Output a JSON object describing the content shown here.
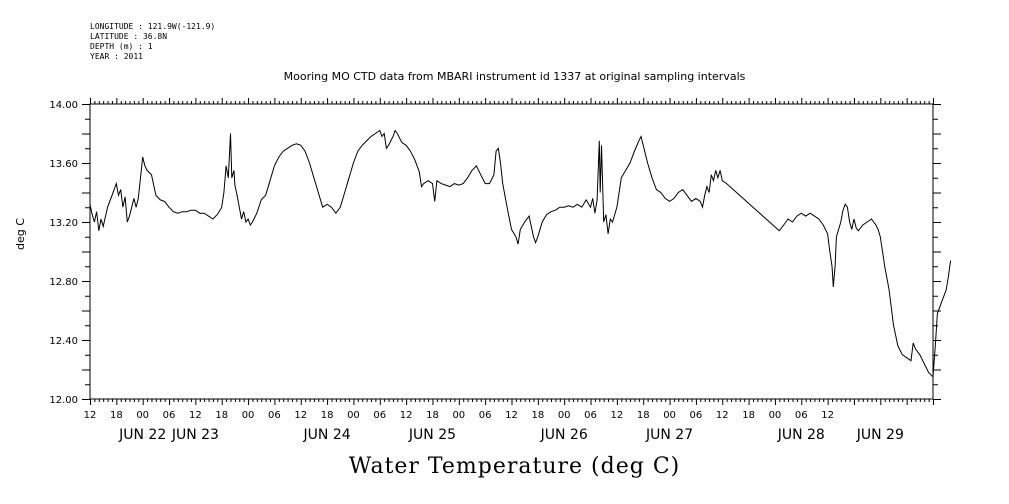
{
  "header": {
    "longitude": "LONGITUDE : 121.9W(-121.9)",
    "latitude": "LATITUDE : 36.8N",
    "depth": "DEPTH (m) : 1",
    "year": "YEAR : 2011"
  },
  "chart_data": {
    "type": "line",
    "title": "Mooring MO CTD data from MBARI instrument id 1337 at original sampling intervals",
    "ylabel": "deg C",
    "xlabel": "Water Temperature (deg C)",
    "ylim": [
      12.0,
      14.0
    ],
    "yticks": [
      "14.00",
      "13.60",
      "13.20",
      "12.80",
      "12.40",
      "12.00"
    ],
    "xlim_hours": [
      -12,
      180
    ],
    "hour_tick_labels": [
      "12",
      "18",
      "00",
      "06",
      "12",
      "18",
      "00",
      "06",
      "12",
      "18",
      "00",
      "06",
      "12",
      "18",
      "00",
      "06",
      "12",
      "18",
      "00",
      "06",
      "12",
      "18",
      "00",
      "06",
      "12",
      "18",
      "00",
      "06",
      "12"
    ],
    "date_labels": [
      {
        "text": "JUN 22",
        "hour": 0
      },
      {
        "text": "JUN 23",
        "hour": 12
      },
      {
        "text": "JUN 24",
        "hour": 42
      },
      {
        "text": "JUN 25",
        "hour": 66
      },
      {
        "text": "JUN 26",
        "hour": 96
      },
      {
        "text": "JUN 27",
        "hour": 120
      },
      {
        "text": "JUN 28",
        "hour": 150
      },
      {
        "text": "JUN 29",
        "hour": 168
      }
    ],
    "series": [
      {
        "points": [
          [
            -12,
            13.32
          ],
          [
            -11.5,
            13.25
          ],
          [
            -11,
            13.2
          ],
          [
            -10.5,
            13.27
          ],
          [
            -10,
            13.14
          ],
          [
            -9.5,
            13.22
          ],
          [
            -9,
            13.17
          ],
          [
            -8,
            13.3
          ],
          [
            -7,
            13.38
          ],
          [
            -6,
            13.46
          ],
          [
            -5.5,
            13.38
          ],
          [
            -5,
            13.42
          ],
          [
            -4.5,
            13.3
          ],
          [
            -4,
            13.37
          ],
          [
            -3.5,
            13.2
          ],
          [
            -3,
            13.24
          ],
          [
            -2,
            13.36
          ],
          [
            -1.5,
            13.3
          ],
          [
            -1,
            13.36
          ],
          [
            -0.5,
            13.5
          ],
          [
            0,
            13.64
          ],
          [
            0.5,
            13.58
          ],
          [
            1,
            13.55
          ],
          [
            2,
            13.52
          ],
          [
            2.5,
            13.45
          ],
          [
            3,
            13.38
          ],
          [
            4,
            13.35
          ],
          [
            5,
            13.34
          ],
          [
            6,
            13.3
          ],
          [
            7,
            13.27
          ],
          [
            8,
            13.26
          ],
          [
            9,
            13.27
          ],
          [
            10,
            13.27
          ],
          [
            11,
            13.28
          ],
          [
            12,
            13.28
          ],
          [
            13,
            13.26
          ],
          [
            14,
            13.26
          ],
          [
            15,
            13.24
          ],
          [
            16,
            13.22
          ],
          [
            17,
            13.25
          ],
          [
            18,
            13.3
          ],
          [
            18.5,
            13.4
          ],
          [
            19,
            13.58
          ],
          [
            19.5,
            13.5
          ],
          [
            20,
            13.8
          ],
          [
            20.3,
            13.5
          ],
          [
            20.8,
            13.55
          ],
          [
            21,
            13.45
          ],
          [
            21.5,
            13.38
          ],
          [
            22,
            13.3
          ],
          [
            22.5,
            13.22
          ],
          [
            23,
            13.27
          ],
          [
            23.5,
            13.2
          ],
          [
            24,
            13.22
          ],
          [
            24.5,
            13.18
          ],
          [
            25,
            13.2
          ],
          [
            26,
            13.26
          ],
          [
            27,
            13.35
          ],
          [
            28,
            13.38
          ],
          [
            29,
            13.48
          ],
          [
            30,
            13.58
          ],
          [
            31,
            13.64
          ],
          [
            32,
            13.68
          ],
          [
            33,
            13.7
          ],
          [
            34,
            13.72
          ],
          [
            35,
            13.73
          ],
          [
            36,
            13.72
          ],
          [
            37,
            13.68
          ],
          [
            38,
            13.6
          ],
          [
            39,
            13.5
          ],
          [
            40,
            13.4
          ],
          [
            41,
            13.3
          ],
          [
            42,
            13.32
          ],
          [
            43,
            13.3
          ],
          [
            44,
            13.26
          ],
          [
            45,
            13.3
          ],
          [
            46,
            13.4
          ],
          [
            47,
            13.5
          ],
          [
            48,
            13.6
          ],
          [
            49,
            13.68
          ],
          [
            50,
            13.72
          ],
          [
            51,
            13.75
          ],
          [
            52,
            13.78
          ],
          [
            53,
            13.8
          ],
          [
            54,
            13.82
          ],
          [
            54.5,
            13.78
          ],
          [
            55,
            13.8
          ],
          [
            55.5,
            13.7
          ],
          [
            56,
            13.72
          ],
          [
            56.5,
            13.75
          ],
          [
            57,
            13.78
          ],
          [
            57.5,
            13.82
          ],
          [
            58,
            13.8
          ],
          [
            59,
            13.74
          ],
          [
            60,
            13.72
          ],
          [
            61,
            13.68
          ],
          [
            62,
            13.62
          ],
          [
            63,
            13.54
          ],
          [
            63.5,
            13.44
          ],
          [
            64,
            13.46
          ],
          [
            65,
            13.48
          ],
          [
            66,
            13.46
          ],
          [
            66.5,
            13.34
          ],
          [
            67,
            13.48
          ],
          [
            68,
            13.46
          ],
          [
            69,
            13.45
          ],
          [
            70,
            13.44
          ],
          [
            71,
            13.46
          ],
          [
            72,
            13.45
          ],
          [
            73,
            13.46
          ],
          [
            74,
            13.5
          ],
          [
            75,
            13.55
          ],
          [
            76,
            13.58
          ],
          [
            77,
            13.52
          ],
          [
            78,
            13.46
          ],
          [
            79,
            13.46
          ],
          [
            80,
            13.52
          ],
          [
            80.5,
            13.68
          ],
          [
            81,
            13.7
          ],
          [
            81.5,
            13.6
          ],
          [
            82,
            13.46
          ],
          [
            83,
            13.3
          ],
          [
            84,
            13.15
          ],
          [
            85,
            13.1
          ],
          [
            85.5,
            13.05
          ],
          [
            86,
            13.15
          ],
          [
            87,
            13.2
          ],
          [
            88,
            13.24
          ],
          [
            89,
            13.1
          ],
          [
            89.5,
            13.06
          ],
          [
            90,
            13.1
          ],
          [
            91,
            13.2
          ],
          [
            92,
            13.25
          ],
          [
            93,
            13.27
          ],
          [
            94,
            13.28
          ],
          [
            95,
            13.3
          ],
          [
            96,
            13.3
          ],
          [
            97,
            13.31
          ],
          [
            98,
            13.3
          ],
          [
            99,
            13.32
          ],
          [
            100,
            13.3
          ],
          [
            101,
            13.35
          ],
          [
            102,
            13.3
          ],
          [
            102.5,
            13.36
          ],
          [
            103,
            13.26
          ],
          [
            103.5,
            13.35
          ],
          [
            104,
            13.75
          ],
          [
            104.2,
            13.4
          ],
          [
            104.5,
            13.72
          ],
          [
            105,
            13.2
          ],
          [
            105.5,
            13.25
          ],
          [
            106,
            13.12
          ],
          [
            106.5,
            13.22
          ],
          [
            107,
            13.2
          ],
          [
            107.5,
            13.25
          ],
          [
            108,
            13.3
          ],
          [
            108.5,
            13.4
          ],
          [
            109,
            13.5
          ],
          [
            110,
            13.55
          ],
          [
            111,
            13.6
          ],
          [
            112,
            13.68
          ],
          [
            113,
            13.75
          ],
          [
            113.5,
            13.78
          ],
          [
            114,
            13.72
          ],
          [
            115,
            13.6
          ],
          [
            116,
            13.5
          ],
          [
            117,
            13.42
          ],
          [
            118,
            13.4
          ],
          [
            119,
            13.36
          ],
          [
            120,
            13.34
          ],
          [
            121,
            13.36
          ],
          [
            122,
            13.4
          ],
          [
            123,
            13.42
          ],
          [
            124,
            13.38
          ],
          [
            125,
            13.34
          ],
          [
            126,
            13.36
          ],
          [
            127,
            13.34
          ],
          [
            127.5,
            13.3
          ],
          [
            128,
            13.38
          ],
          [
            128.5,
            13.44
          ],
          [
            129,
            13.4
          ],
          [
            129.5,
            13.52
          ],
          [
            130,
            13.48
          ],
          [
            130.5,
            13.55
          ],
          [
            131,
            13.5
          ],
          [
            131.5,
            13.55
          ],
          [
            132,
            13.48
          ],
          [
            133,
            13.46
          ],
          [
            145,
            13.14
          ],
          [
            146,
            13.18
          ],
          [
            147,
            13.22
          ],
          [
            148,
            13.2
          ],
          [
            149,
            13.24
          ],
          [
            150,
            13.26
          ],
          [
            151,
            13.24
          ],
          [
            152,
            13.26
          ],
          [
            153,
            13.24
          ],
          [
            154,
            13.22
          ],
          [
            155,
            13.18
          ],
          [
            156,
            13.12
          ],
          [
            156.5,
            13.0
          ],
          [
            157,
            12.9
          ],
          [
            157.3,
            12.76
          ],
          [
            157.7,
            12.9
          ],
          [
            158,
            13.1
          ],
          [
            159,
            13.2
          ],
          [
            159.5,
            13.28
          ],
          [
            160,
            13.32
          ],
          [
            160.5,
            13.3
          ],
          [
            161,
            13.2
          ],
          [
            161.5,
            13.15
          ],
          [
            162,
            13.22
          ],
          [
            162.5,
            13.16
          ],
          [
            163,
            13.14
          ],
          [
            164,
            13.18
          ],
          [
            165,
            13.2
          ],
          [
            166,
            13.22
          ],
          [
            167,
            13.18
          ],
          [
            167.5,
            13.15
          ],
          [
            168,
            13.1
          ],
          [
            168.5,
            13.0
          ],
          [
            169,
            12.9
          ],
          [
            170,
            12.74
          ],
          [
            171,
            12.5
          ],
          [
            172,
            12.36
          ],
          [
            173,
            12.3
          ],
          [
            174,
            12.28
          ],
          [
            175,
            12.26
          ],
          [
            175.5,
            12.38
          ],
          [
            176,
            12.34
          ],
          [
            177,
            12.3
          ],
          [
            178,
            12.24
          ],
          [
            179,
            12.18
          ],
          [
            180,
            12.15
          ],
          [
            180.5,
            12.35
          ],
          [
            181,
            12.58
          ],
          [
            182,
            12.66
          ],
          [
            183,
            12.74
          ],
          [
            183.5,
            12.83
          ],
          [
            184,
            12.94
          ]
        ]
      }
    ]
  }
}
